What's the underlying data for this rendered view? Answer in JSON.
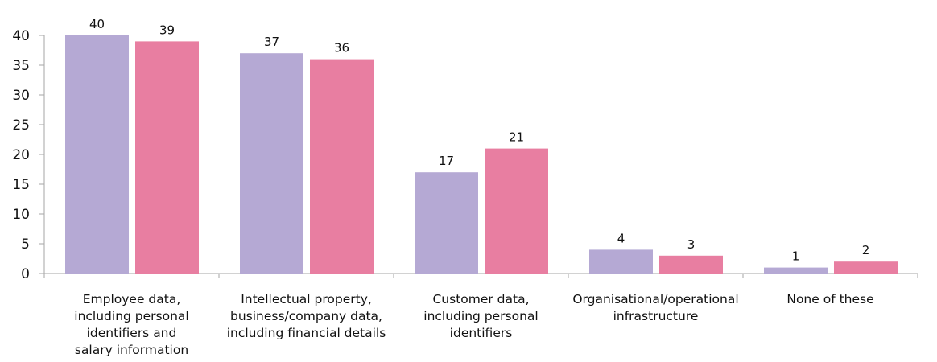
{
  "chart_data": {
    "type": "bar",
    "categories": [
      [
        "Employee data,",
        "including personal",
        "identifiers and",
        "salary information"
      ],
      [
        "Intellectual property,",
        "business/company data,",
        "including financial details"
      ],
      [
        "Customer data,",
        "including personal",
        "identifiers"
      ],
      [
        "Organisational/operational",
        "infrastructure"
      ],
      [
        "None of these"
      ]
    ],
    "series": [
      {
        "values": [
          40,
          37,
          17,
          4,
          1
        ],
        "color": "#b5a9d4"
      },
      {
        "values": [
          39,
          36,
          21,
          3,
          2
        ],
        "color": "#e87ea1"
      }
    ],
    "ylim": [
      0,
      40
    ],
    "yticks": [
      0,
      5,
      10,
      15,
      20,
      25,
      30,
      35,
      40
    ],
    "grid": false,
    "data_labels": true,
    "legend": false
  }
}
